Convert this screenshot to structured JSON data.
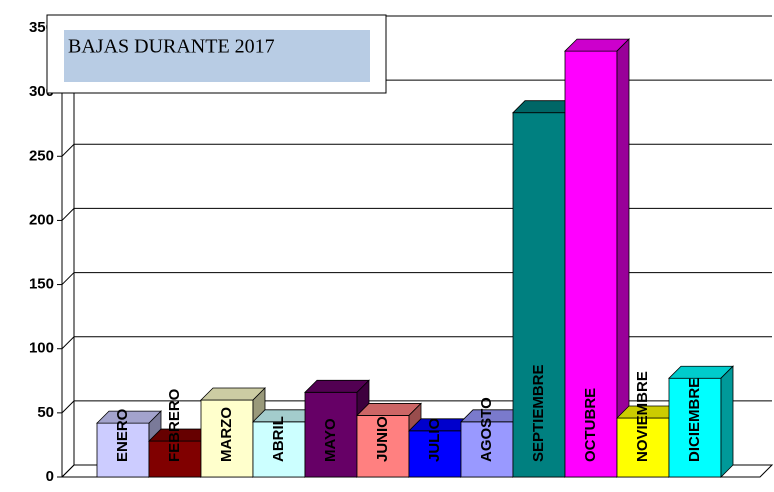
{
  "chart_data": {
    "type": "bar3d",
    "title": "BAJAS DURANTE 2017",
    "categories": [
      "ENERO",
      "FEBRERO",
      "MARZO",
      "ABRIL",
      "MAYO",
      "JUNIO",
      "JULIO",
      "AGOSTO",
      "SEPTIEMBRE",
      "OCTUBRE",
      "NOVIEMBRE",
      "DICIEMBRE"
    ],
    "values": [
      42,
      28,
      60,
      43,
      66,
      48,
      36,
      43,
      284,
      332,
      46,
      77
    ],
    "colors": [
      "#ccccff",
      "#800000",
      "#ffffcc",
      "#ccffff",
      "#660066",
      "#ff8080",
      "#0000ff",
      "#9999ff",
      "#008080",
      "#ff00ff",
      "#ffff00",
      "#00ffff"
    ],
    "ylim": [
      0,
      350
    ],
    "yticks": [
      0,
      50,
      100,
      150,
      200,
      250,
      300,
      350
    ],
    "grid": true
  }
}
